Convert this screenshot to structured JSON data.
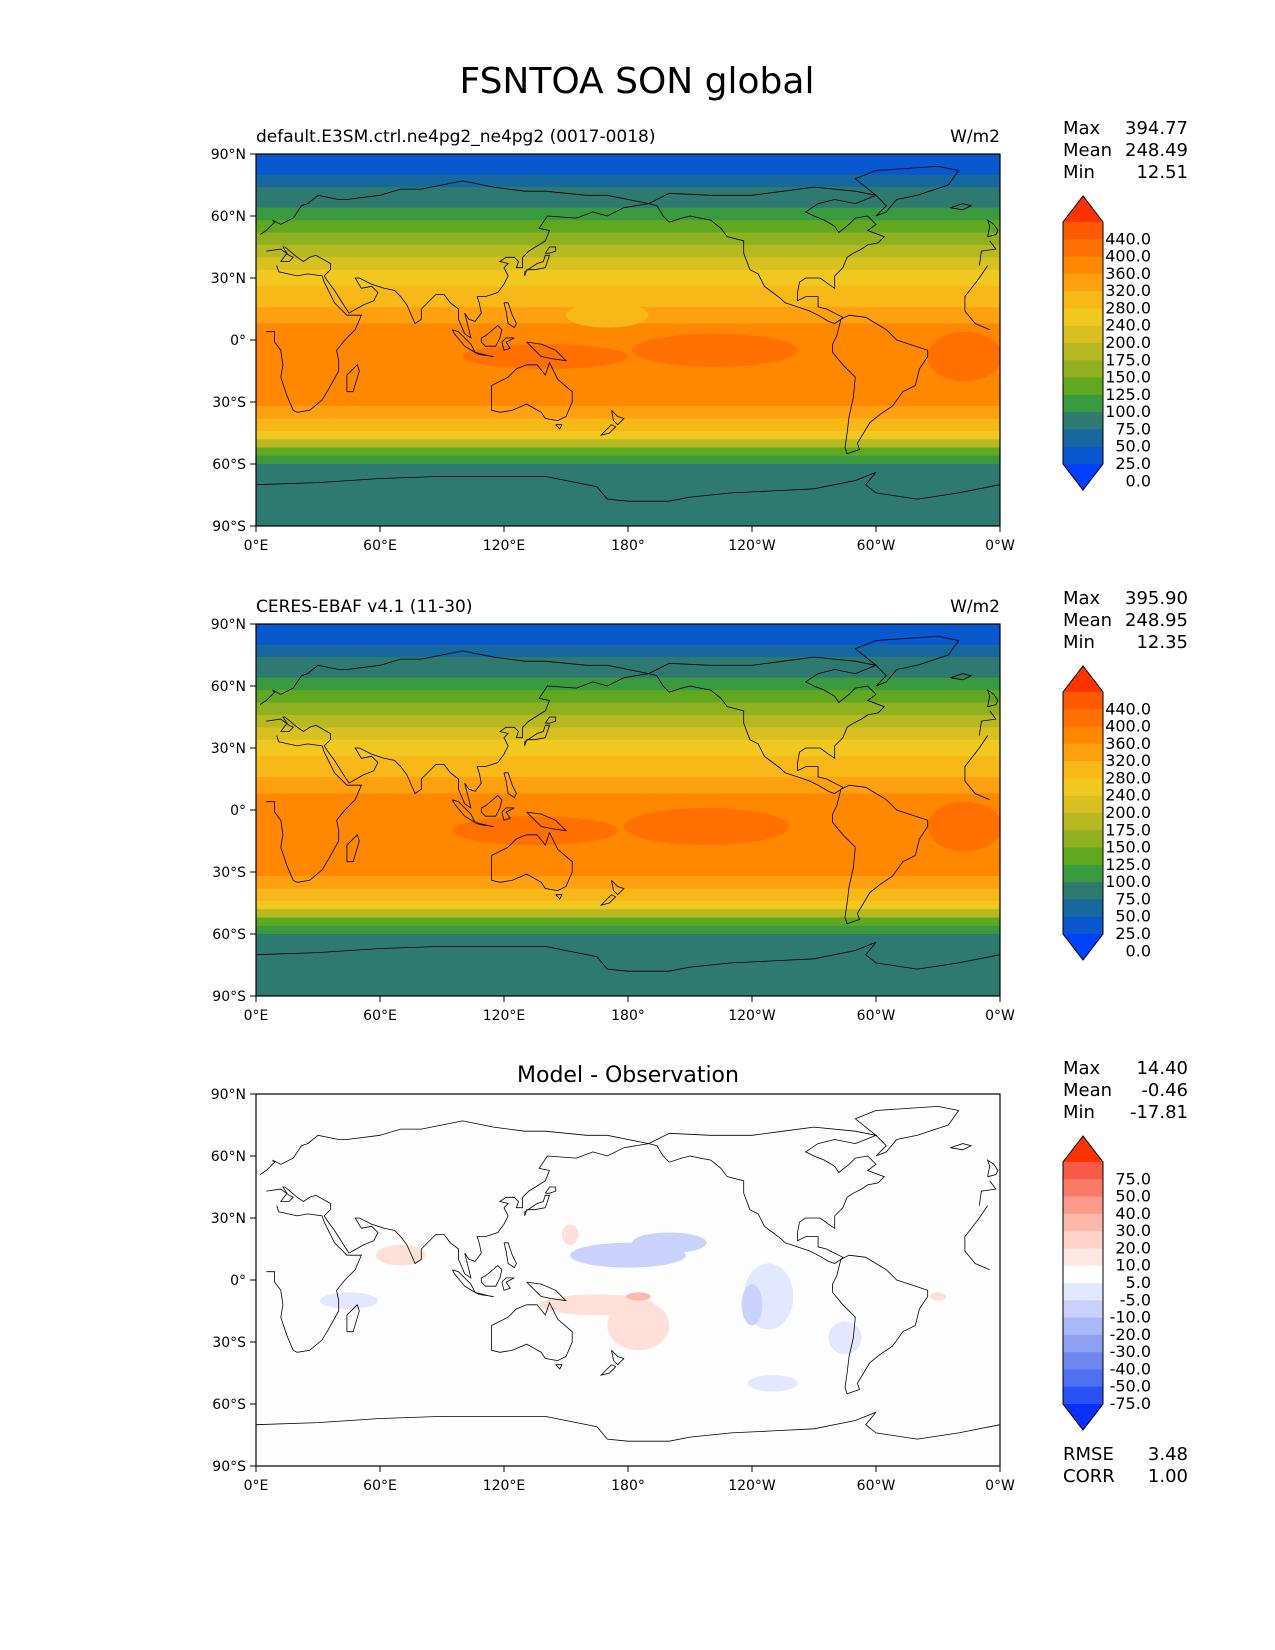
{
  "title": "FSNTOA SON global",
  "panels": [
    {
      "id": "model",
      "left_title": "default.E3SM.ctrl.ne4pg2_ne4pg2 (0017-0018)",
      "center_title": "",
      "units": "W/m2",
      "stats": [
        {
          "label": "Max",
          "value": "394.77"
        },
        {
          "label": "Mean",
          "value": "248.49"
        },
        {
          "label": "Min",
          "value": "12.51"
        }
      ],
      "colorbar": {
        "labels": [
          "440.0",
          "400.0",
          "360.0",
          "320.0",
          "280.0",
          "240.0",
          "200.0",
          "175.0",
          "150.0",
          "125.0",
          "100.0",
          "75.0",
          "50.0",
          "25.0",
          "0.0"
        ],
        "colors": [
          "#ff3300",
          "#ff5a00",
          "#ff7000",
          "#ff8800",
          "#ffa010",
          "#f8b818",
          "#f0c820",
          "#d8c020",
          "#b8b820",
          "#90b020",
          "#60a820",
          "#3a9a40",
          "#2f7a70",
          "#1868a0",
          "#0a58d0",
          "#0040ff"
        ]
      },
      "zones": [
        {
          "lat": [
            90,
            80
          ],
          "color": "#0a58d0"
        },
        {
          "lat": [
            80,
            74
          ],
          "color": "#1868a0"
        },
        {
          "lat": [
            74,
            64
          ],
          "color": "#2f7a70"
        },
        {
          "lat": [
            64,
            58
          ],
          "color": "#3a9a40"
        },
        {
          "lat": [
            58,
            52
          ],
          "color": "#60a820"
        },
        {
          "lat": [
            52,
            46
          ],
          "color": "#90b020"
        },
        {
          "lat": [
            46,
            40
          ],
          "color": "#b8b820"
        },
        {
          "lat": [
            40,
            34
          ],
          "color": "#d8c020"
        },
        {
          "lat": [
            34,
            26
          ],
          "color": "#f0c820"
        },
        {
          "lat": [
            26,
            16
          ],
          "color": "#f8b818"
        },
        {
          "lat": [
            16,
            8
          ],
          "color": "#ffa010"
        },
        {
          "lat": [
            8,
            -32
          ],
          "color": "#ff8800"
        },
        {
          "lat": [
            -32,
            -38
          ],
          "color": "#ffa010"
        },
        {
          "lat": [
            -38,
            -44
          ],
          "color": "#f8b818"
        },
        {
          "lat": [
            -44,
            -48
          ],
          "color": "#f0c820"
        },
        {
          "lat": [
            -48,
            -52
          ],
          "color": "#b8b820"
        },
        {
          "lat": [
            -52,
            -56
          ],
          "color": "#60a820"
        },
        {
          "lat": [
            -56,
            -60
          ],
          "color": "#3a9a40"
        },
        {
          "lat": [
            -60,
            -90
          ],
          "color": "#2f7a70"
        }
      ],
      "blobs": [
        {
          "lon": 140,
          "lat": -8,
          "rlon": 40,
          "rlat": 6,
          "color": "#ff7000"
        },
        {
          "lon": 222,
          "lat": -5,
          "rlon": 40,
          "rlat": 8,
          "color": "#ff7000"
        },
        {
          "lon": 343,
          "lat": -8,
          "rlon": 18,
          "rlat": 12,
          "color": "#ff7000"
        },
        {
          "lon": 170,
          "lat": 12,
          "rlon": 20,
          "rlat": 6,
          "color": "#f8b818"
        }
      ]
    },
    {
      "id": "obs",
      "left_title": "CERES-EBAF v4.1 (11-30)",
      "center_title": "",
      "units": "W/m2",
      "stats": [
        {
          "label": "Max",
          "value": "395.90"
        },
        {
          "label": "Mean",
          "value": "248.95"
        },
        {
          "label": "Min",
          "value": "12.35"
        }
      ],
      "colorbar": {
        "labels": [
          "440.0",
          "400.0",
          "360.0",
          "320.0",
          "280.0",
          "240.0",
          "200.0",
          "175.0",
          "150.0",
          "125.0",
          "100.0",
          "75.0",
          "50.0",
          "25.0",
          "0.0"
        ],
        "colors": [
          "#ff3300",
          "#ff5a00",
          "#ff7000",
          "#ff8800",
          "#ffa010",
          "#f8b818",
          "#f0c820",
          "#d8c020",
          "#b8b820",
          "#90b020",
          "#60a820",
          "#3a9a40",
          "#2f7a70",
          "#1868a0",
          "#0a58d0",
          "#0040ff"
        ]
      },
      "zones": [
        {
          "lat": [
            90,
            80
          ],
          "color": "#0a58d0"
        },
        {
          "lat": [
            80,
            74
          ],
          "color": "#1868a0"
        },
        {
          "lat": [
            74,
            64
          ],
          "color": "#2f7a70"
        },
        {
          "lat": [
            64,
            58
          ],
          "color": "#3a9a40"
        },
        {
          "lat": [
            58,
            52
          ],
          "color": "#60a820"
        },
        {
          "lat": [
            52,
            46
          ],
          "color": "#90b020"
        },
        {
          "lat": [
            46,
            40
          ],
          "color": "#b8b820"
        },
        {
          "lat": [
            40,
            34
          ],
          "color": "#d8c020"
        },
        {
          "lat": [
            34,
            26
          ],
          "color": "#f0c820"
        },
        {
          "lat": [
            26,
            16
          ],
          "color": "#f8b818"
        },
        {
          "lat": [
            16,
            8
          ],
          "color": "#ffa010"
        },
        {
          "lat": [
            8,
            -32
          ],
          "color": "#ff8800"
        },
        {
          "lat": [
            -32,
            -38
          ],
          "color": "#ffa010"
        },
        {
          "lat": [
            -38,
            -44
          ],
          "color": "#f8b818"
        },
        {
          "lat": [
            -44,
            -48
          ],
          "color": "#f0c820"
        },
        {
          "lat": [
            -48,
            -52
          ],
          "color": "#b8b820"
        },
        {
          "lat": [
            -52,
            -56
          ],
          "color": "#60a820"
        },
        {
          "lat": [
            -56,
            -60
          ],
          "color": "#3a9a40"
        },
        {
          "lat": [
            -60,
            -90
          ],
          "color": "#2f7a70"
        }
      ],
      "blobs": [
        {
          "lon": 135,
          "lat": -10,
          "rlon": 40,
          "rlat": 7,
          "color": "#ff7000"
        },
        {
          "lon": 218,
          "lat": -8,
          "rlon": 40,
          "rlat": 9,
          "color": "#ff7000"
        },
        {
          "lon": 343,
          "lat": -8,
          "rlon": 18,
          "rlat": 12,
          "color": "#ff7000"
        }
      ]
    },
    {
      "id": "diff",
      "left_title": "",
      "center_title": "Model - Observation",
      "units": "",
      "stats": [
        {
          "label": "Max",
          "value": "14.40"
        },
        {
          "label": "Mean",
          "value": "-0.46"
        },
        {
          "label": "Min",
          "value": "-17.81"
        }
      ],
      "colorbar": {
        "labels": [
          "75.0",
          "50.0",
          "40.0",
          "30.0",
          "20.0",
          "10.0",
          "5.0",
          "-5.0",
          "-10.0",
          "-20.0",
          "-30.0",
          "-40.0",
          "-50.0",
          "-75.0"
        ],
        "colors": [
          "#ff3300",
          "#f85a48",
          "#fa7a6a",
          "#fc9a8c",
          "#fdb8ac",
          "#fed2c8",
          "#ffe8e2",
          "#ffffff",
          "#e2e8ff",
          "#c8d2fc",
          "#a8b8f8",
          "#8ea0f2",
          "#7088ee",
          "#5070f4",
          "#2a50f8",
          "#0a30ff"
        ]
      },
      "extra_stats": [
        {
          "label": "RMSE",
          "value": "3.48"
        },
        {
          "label": "CORR",
          "value": "1.00"
        }
      ],
      "background": "#fdfdfd",
      "blobs": [
        {
          "lon": 180,
          "lat": 12,
          "rlon": 28,
          "rlat": 6,
          "color": "#c8d2fc"
        },
        {
          "lon": 200,
          "lat": 18,
          "rlon": 18,
          "rlat": 5,
          "color": "#c8d2fc"
        },
        {
          "lon": 248,
          "lat": -8,
          "rlon": 12,
          "rlat": 16,
          "color": "#e2e8ff"
        },
        {
          "lon": 240,
          "lat": -12,
          "rlon": 5,
          "rlat": 10,
          "color": "#c8d2fc"
        },
        {
          "lon": 45,
          "lat": -10,
          "rlon": 14,
          "rlat": 4,
          "color": "#e2e8ff"
        },
        {
          "lon": 285,
          "lat": -28,
          "rlon": 8,
          "rlat": 8,
          "color": "#e2e8ff"
        },
        {
          "lon": 250,
          "lat": -50,
          "rlon": 12,
          "rlat": 4,
          "color": "#e2e8ff"
        },
        {
          "lon": 165,
          "lat": -12,
          "rlon": 28,
          "rlat": 5,
          "color": "#ffe0d8"
        },
        {
          "lon": 185,
          "lat": -22,
          "rlon": 15,
          "rlat": 12,
          "color": "#ffe0d8"
        },
        {
          "lon": 185,
          "lat": -8,
          "rlon": 6,
          "rlat": 2,
          "color": "#fdb8ac"
        },
        {
          "lon": 70,
          "lat": 12,
          "rlon": 12,
          "rlat": 5,
          "color": "#ffe0d8"
        },
        {
          "lon": 152,
          "lat": 22,
          "rlon": 4,
          "rlat": 5,
          "color": "#ffe0d8"
        },
        {
          "lon": 330,
          "lat": -8,
          "rlon": 4,
          "rlat": 2,
          "color": "#ffe0d8"
        }
      ]
    }
  ],
  "lat_ticks": [
    "90°N",
    "60°N",
    "30°N",
    "0°",
    "30°S",
    "60°S",
    "90°S"
  ],
  "lon_ticks": [
    "0°E",
    "60°E",
    "120°E",
    "180°",
    "120°W",
    "60°W",
    "0°W"
  ]
}
